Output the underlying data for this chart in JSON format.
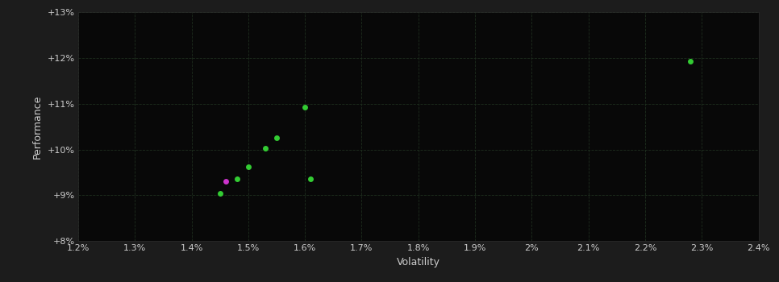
{
  "background_color": "#1c1c1c",
  "plot_bg_color": "#080808",
  "grid_color": "#1e2e1e",
  "text_color": "#cccccc",
  "xlabel": "Volatility",
  "ylabel": "Performance",
  "xlim": [
    0.012,
    0.024
  ],
  "ylim": [
    0.08,
    0.13
  ],
  "xticks": [
    0.012,
    0.013,
    0.014,
    0.015,
    0.016,
    0.017,
    0.018,
    0.019,
    0.02,
    0.021,
    0.022,
    0.023,
    0.024
  ],
  "yticks": [
    0.08,
    0.09,
    0.1,
    0.11,
    0.12,
    0.13
  ],
  "green_points": [
    [
      0.0145,
      0.0905
    ],
    [
      0.0148,
      0.0935
    ],
    [
      0.015,
      0.0963
    ],
    [
      0.0153,
      0.1003
    ],
    [
      0.0155,
      0.1025
    ],
    [
      0.016,
      0.1093
    ],
    [
      0.0161,
      0.0935
    ],
    [
      0.0228,
      0.1193
    ]
  ],
  "magenta_points": [
    [
      0.0146,
      0.093
    ]
  ],
  "marker_size": 25,
  "font_size_labels": 9,
  "font_size_ticks": 8
}
